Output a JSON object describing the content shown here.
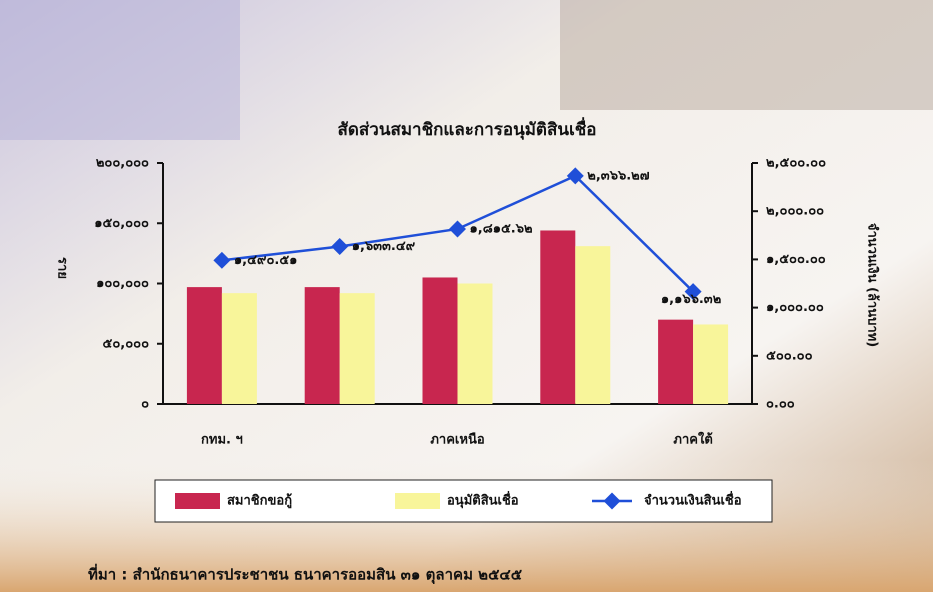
{
  "chart_data": {
    "type": "bar",
    "title": "สัดส่วนสมาชิกและการอนุมัติสินเชื่อ",
    "y_label": "ราย",
    "y2_label": "จำนวนเงิน (ล้านบาท)",
    "categories": [
      "กทม. ฯ",
      null,
      "ภาคเหนือ",
      null,
      "ภาคใต้"
    ],
    "ylim": [
      0,
      200000
    ],
    "yticks": [
      {
        "value": 0,
        "label": "๐"
      },
      {
        "value": 50000,
        "label": "๕๐,๐๐๐"
      },
      {
        "value": 100000,
        "label": "๑๐๐,๐๐๐"
      },
      {
        "value": 150000,
        "label": "๑๕๐,๐๐๐"
      },
      {
        "value": 200000,
        "label": "๒๐๐,๐๐๐"
      }
    ],
    "y2lim": [
      0,
      2500
    ],
    "y2ticks": [
      {
        "value": 0,
        "label": "๐.๐๐"
      },
      {
        "value": 500,
        "label": "๕๐๐.๐๐"
      },
      {
        "value": 1000,
        "label": "๑,๐๐๐.๐๐"
      },
      {
        "value": 1500,
        "label": "๑,๕๐๐.๐๐"
      },
      {
        "value": 2000,
        "label": "๒,๐๐๐.๐๐"
      },
      {
        "value": 2500,
        "label": "๒,๕๐๐.๐๐"
      }
    ],
    "series": [
      {
        "name": "สมาชิกขอกู้",
        "color": "#c8264f",
        "values": [
          97000,
          97000,
          105000,
          144000,
          70000
        ]
      },
      {
        "name": "อนุมัติสินเชื่อ",
        "color": "#f8f59a",
        "values": [
          92000,
          92000,
          100000,
          131000,
          66000
        ]
      },
      {
        "name": "จำนวนเงินสินเชื่อ",
        "type": "line",
        "axis": "y2",
        "color": "#1f4fd8",
        "values": [
          1490.51,
          1633.49,
          1815.62,
          2366.27,
          1166.32
        ],
        "value_labels": [
          "๑,๔๙๐.๕๑",
          "๑,๖๓๓.๔๙",
          "๑,๘๑๕.๖๒",
          "๒,๓๖๖.๒๗",
          "๑,๑๖๖.๓๒"
        ]
      }
    ],
    "source": "ที่มา : สำนักธนาคารประชาชน ธนาคารออมสิน  ๓๑ ตุลาคม ๒๕๔๕"
  }
}
